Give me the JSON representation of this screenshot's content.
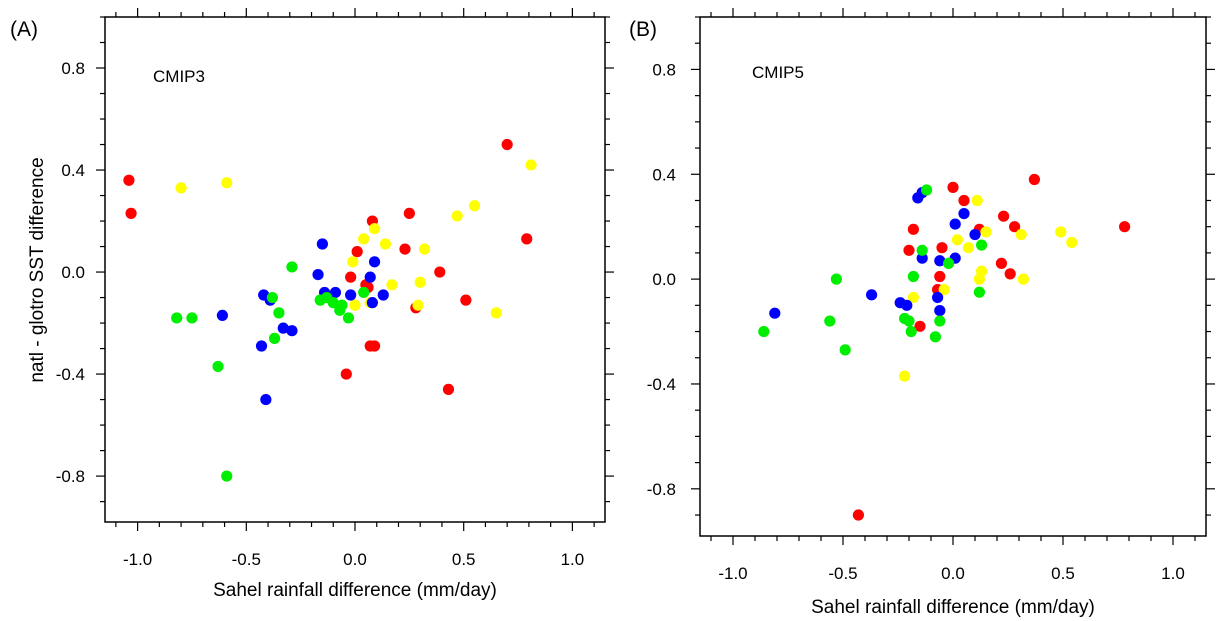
{
  "chart_data": [
    {
      "type": "scatter",
      "panel_label": "(A)",
      "title": "CMIP3",
      "xlabel": "Sahel rainfall difference (mm/day)",
      "ylabel": "natl - glotro SST difference",
      "xlim": [
        -1.15,
        1.15
      ],
      "ylim": [
        -0.98,
        1.0
      ],
      "x_ticks": [
        -1.0,
        -0.5,
        0.0,
        0.5,
        1.0
      ],
      "x_tick_labels": [
        "-1.0",
        "-0.5",
        "0.0",
        "0.5",
        "1.0"
      ],
      "y_ticks": [
        -0.8,
        -0.4,
        0.0,
        0.4,
        0.8
      ],
      "y_tick_labels": [
        "-0.8",
        "-0.4",
        "0.0",
        "0.4",
        "0.8"
      ],
      "grid": false,
      "series": [
        {
          "color": "#ff0000",
          "x": [
            -1.04,
            -1.03,
            0.7,
            0.79,
            0.25,
            0.23,
            0.08,
            0.01,
            0.05,
            -0.02,
            0.06,
            0.39,
            0.51,
            0.28,
            0.07,
            0.09,
            -0.04,
            0.43
          ],
          "y": [
            0.36,
            0.23,
            0.5,
            0.13,
            0.23,
            0.09,
            0.2,
            0.08,
            -0.05,
            -0.02,
            -0.06,
            0.0,
            -0.11,
            -0.14,
            -0.29,
            -0.29,
            -0.4,
            -0.46
          ]
        },
        {
          "color": "#ffff00",
          "x": [
            -0.8,
            -0.59,
            0.81,
            0.55,
            0.47,
            0.32,
            0.09,
            0.04,
            0.14,
            0.3,
            -0.01,
            0.0,
            0.17,
            0.07,
            0.0,
            0.65,
            0.29
          ],
          "y": [
            0.33,
            0.35,
            0.42,
            0.26,
            0.22,
            0.09,
            0.17,
            0.13,
            0.11,
            -0.04,
            0.04,
            -0.13,
            -0.05,
            -0.12,
            -0.13,
            -0.16,
            -0.13
          ]
        },
        {
          "color": "#0000ff",
          "x": [
            -0.15,
            -0.17,
            -0.14,
            -0.09,
            -0.02,
            0.09,
            0.07,
            0.13,
            -0.42,
            -0.39,
            -0.61,
            -0.43,
            -0.33,
            -0.29,
            -0.41,
            0.08
          ],
          "y": [
            0.11,
            -0.01,
            -0.08,
            -0.08,
            -0.09,
            0.04,
            -0.02,
            -0.09,
            -0.09,
            -0.11,
            -0.17,
            -0.29,
            -0.22,
            -0.23,
            -0.5,
            -0.12
          ]
        },
        {
          "color": "#00ee00",
          "x": [
            -0.82,
            -0.75,
            -0.29,
            -0.38,
            -0.35,
            -0.37,
            -0.63,
            -0.59,
            -0.13,
            -0.1,
            -0.07,
            -0.03,
            0.04,
            -0.16,
            -0.06
          ],
          "y": [
            -0.18,
            -0.18,
            0.02,
            -0.1,
            -0.16,
            -0.26,
            -0.37,
            -0.8,
            -0.1,
            -0.12,
            -0.15,
            -0.18,
            -0.08,
            -0.11,
            -0.13
          ]
        }
      ]
    },
    {
      "type": "scatter",
      "panel_label": "(B)",
      "title": "CMIP5",
      "xlabel": "Sahel rainfall difference (mm/day)",
      "ylabel": "",
      "xlim": [
        -1.15,
        1.15
      ],
      "ylim": [
        -0.98,
        1.0
      ],
      "x_ticks": [
        -1.0,
        -0.5,
        0.0,
        0.5,
        1.0
      ],
      "x_tick_labels": [
        "-1.0",
        "-0.5",
        "0.0",
        "0.5",
        "1.0"
      ],
      "y_ticks": [
        -0.8,
        -0.4,
        0.0,
        0.4,
        0.8
      ],
      "y_tick_labels": [
        "-0.8",
        "-0.4",
        "0.0",
        "0.4",
        "0.8"
      ],
      "grid": false,
      "series": [
        {
          "color": "#ff0000",
          "x": [
            0.0,
            0.37,
            0.05,
            0.23,
            -0.18,
            0.12,
            0.28,
            0.78,
            -0.2,
            -0.05,
            0.22,
            -0.06,
            0.26,
            -0.07,
            -0.15,
            -0.43
          ],
          "y": [
            0.35,
            0.38,
            0.3,
            0.24,
            0.19,
            0.19,
            0.2,
            0.2,
            0.11,
            0.12,
            0.06,
            0.01,
            0.02,
            -0.04,
            -0.18,
            -0.9
          ]
        },
        {
          "color": "#ffff00",
          "x": [
            0.11,
            0.49,
            0.54,
            0.31,
            0.15,
            0.02,
            0.07,
            0.13,
            0.12,
            0.32,
            -0.18,
            -0.22,
            -0.04
          ],
          "y": [
            0.3,
            0.18,
            0.14,
            0.17,
            0.18,
            0.15,
            0.12,
            0.03,
            0.0,
            0.0,
            -0.07,
            -0.37,
            -0.04
          ]
        },
        {
          "color": "#0000ff",
          "x": [
            -0.14,
            -0.16,
            0.05,
            0.01,
            0.1,
            -0.06,
            -0.14,
            0.01,
            -0.81,
            -0.37,
            -0.24,
            -0.21,
            -0.07,
            -0.06
          ],
          "y": [
            0.33,
            0.31,
            0.25,
            0.21,
            0.17,
            0.07,
            0.08,
            0.08,
            -0.13,
            -0.06,
            -0.09,
            -0.1,
            -0.07,
            -0.12
          ]
        },
        {
          "color": "#00ee00",
          "x": [
            -0.12,
            -0.14,
            -0.02,
            0.13,
            -0.18,
            -0.53,
            -0.56,
            -0.49,
            -0.86,
            -0.22,
            -0.2,
            -0.19,
            -0.08,
            -0.06,
            0.12
          ],
          "y": [
            0.34,
            0.11,
            0.06,
            0.13,
            0.01,
            0.0,
            -0.16,
            -0.27,
            -0.2,
            -0.15,
            -0.16,
            -0.2,
            -0.22,
            -0.16,
            -0.05
          ]
        }
      ]
    }
  ]
}
